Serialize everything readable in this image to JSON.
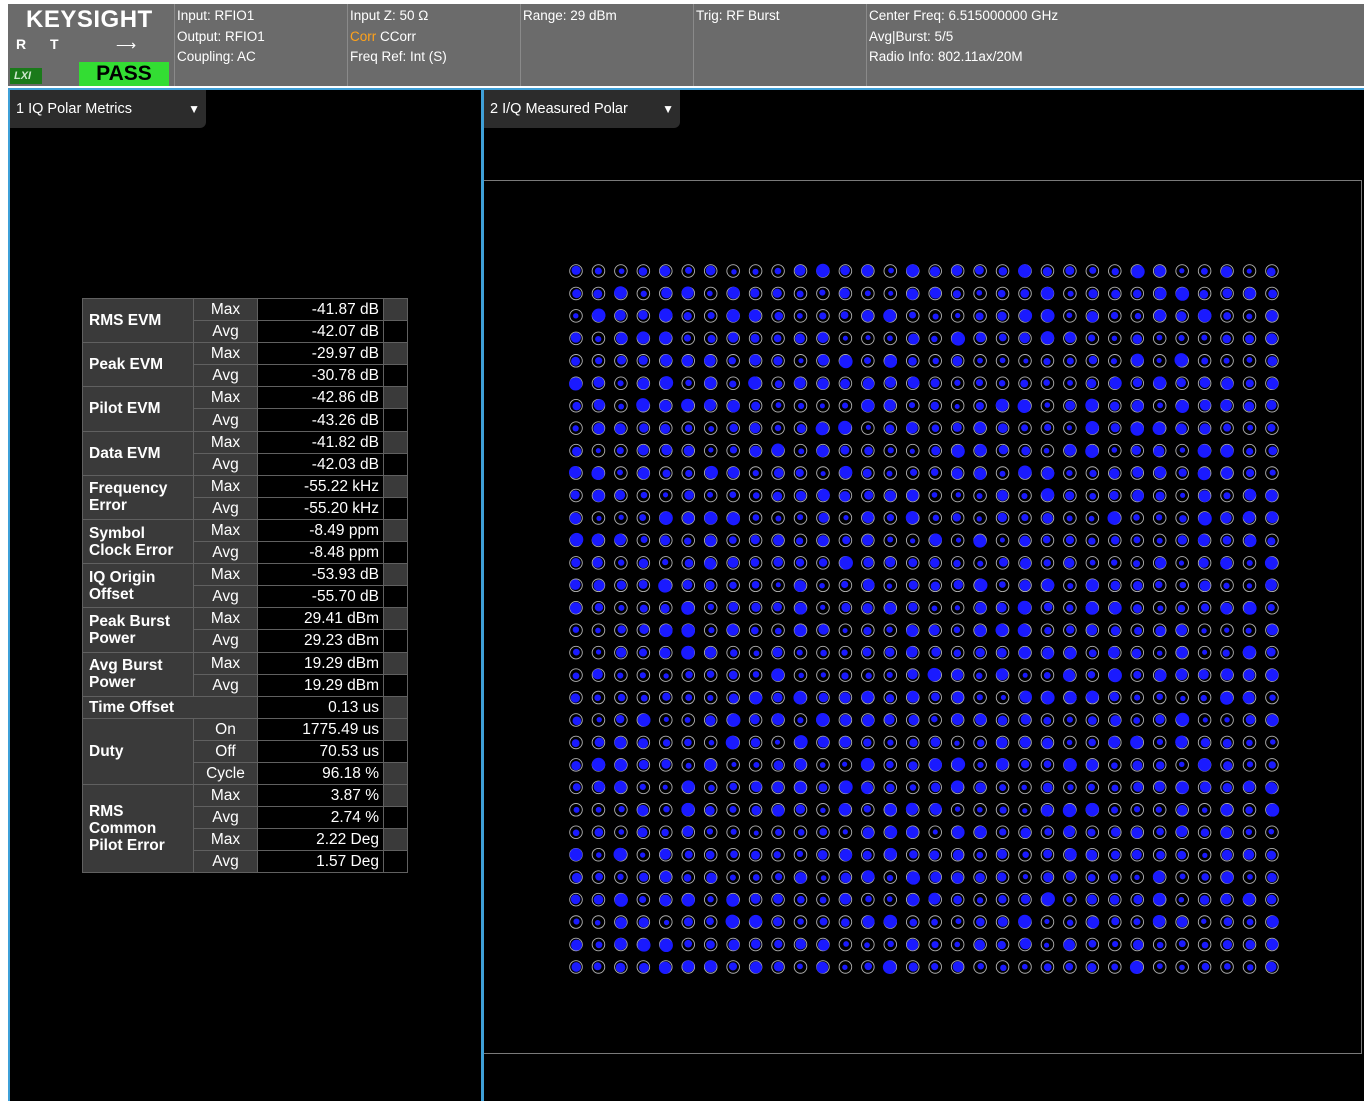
{
  "header": {
    "logo": "KEYSIGHT",
    "rt_label": "R T",
    "lxi_label": "LXI",
    "pass_label": "PASS",
    "col1": [
      "Input: RFIO1",
      "Output: RFIO1",
      "Coupling: AC"
    ],
    "col2_line1": "Input Z: 50 Ω",
    "col2_corr_tag": "Corr",
    "col2_corr_value": " CCorr",
    "col2_line3": "Freq Ref: Int (S)",
    "col3": [
      "Range: 29 dBm"
    ],
    "col4": [
      "Trig: RF Burst"
    ],
    "col5": [
      "Center Freq: 6.515000000 GHz",
      "Avg|Burst: 5/5",
      "Radio Info: 802.11ax/20M"
    ]
  },
  "left_panel": {
    "tab_label": "1 IQ Polar Metrics",
    "metrics": [
      {
        "label": "RMS EVM",
        "rows": [
          {
            "sub": "Max",
            "value": "-41.87 dB"
          },
          {
            "sub": "Avg",
            "value": "-42.07 dB"
          }
        ]
      },
      {
        "label": "Peak EVM",
        "rows": [
          {
            "sub": "Max",
            "value": "-29.97 dB"
          },
          {
            "sub": "Avg",
            "value": "-30.78 dB"
          }
        ]
      },
      {
        "label": "Pilot EVM",
        "rows": [
          {
            "sub": "Max",
            "value": "-42.86 dB"
          },
          {
            "sub": "Avg",
            "value": "-43.26 dB"
          }
        ]
      },
      {
        "label": "Data EVM",
        "rows": [
          {
            "sub": "Max",
            "value": "-41.82 dB"
          },
          {
            "sub": "Avg",
            "value": "-42.03 dB"
          }
        ]
      },
      {
        "label": "Frequency Error",
        "rows": [
          {
            "sub": "Max",
            "value": "-55.22 kHz"
          },
          {
            "sub": "Avg",
            "value": "-55.20 kHz"
          }
        ]
      },
      {
        "label": "Symbol Clock Error",
        "rows": [
          {
            "sub": "Max",
            "value": "-8.49 ppm"
          },
          {
            "sub": "Avg",
            "value": "-8.48 ppm"
          }
        ]
      },
      {
        "label": "IQ Origin Offset",
        "rows": [
          {
            "sub": "Max",
            "value": "-53.93 dB"
          },
          {
            "sub": "Avg",
            "value": "-55.70 dB"
          }
        ]
      },
      {
        "label": "Peak Burst Power",
        "rows": [
          {
            "sub": "Max",
            "value": "29.41 dBm"
          },
          {
            "sub": "Avg",
            "value": "29.23 dBm"
          }
        ]
      },
      {
        "label": "Avg Burst Power",
        "rows": [
          {
            "sub": "Max",
            "value": "19.29 dBm"
          },
          {
            "sub": "Avg",
            "value": "19.29 dBm"
          }
        ]
      },
      {
        "label": "Time Offset",
        "rows": [
          {
            "sub": "",
            "value": "0.13 us"
          }
        ]
      },
      {
        "label": "Duty",
        "rows": [
          {
            "sub": "On",
            "value": "1775.49 us"
          },
          {
            "sub": "Off",
            "value": "70.53 us"
          },
          {
            "sub": "Cycle",
            "value": "96.18 %"
          }
        ]
      },
      {
        "label": "RMS Common Pilot Error",
        "rows": [
          {
            "sub": "Max",
            "value": "3.87 %"
          },
          {
            "sub": "Avg",
            "value": "2.74 %"
          },
          {
            "sub": "Max",
            "value": "2.22  Deg"
          },
          {
            "sub": "Avg",
            "value": "1.57  Deg"
          }
        ]
      }
    ]
  },
  "right_panel": {
    "tab_label": "2 I/Q Measured Polar",
    "constellation": {
      "grid_size": 32,
      "point_color": "#1a1aff",
      "ring_color": "#b0b0b0"
    }
  }
}
